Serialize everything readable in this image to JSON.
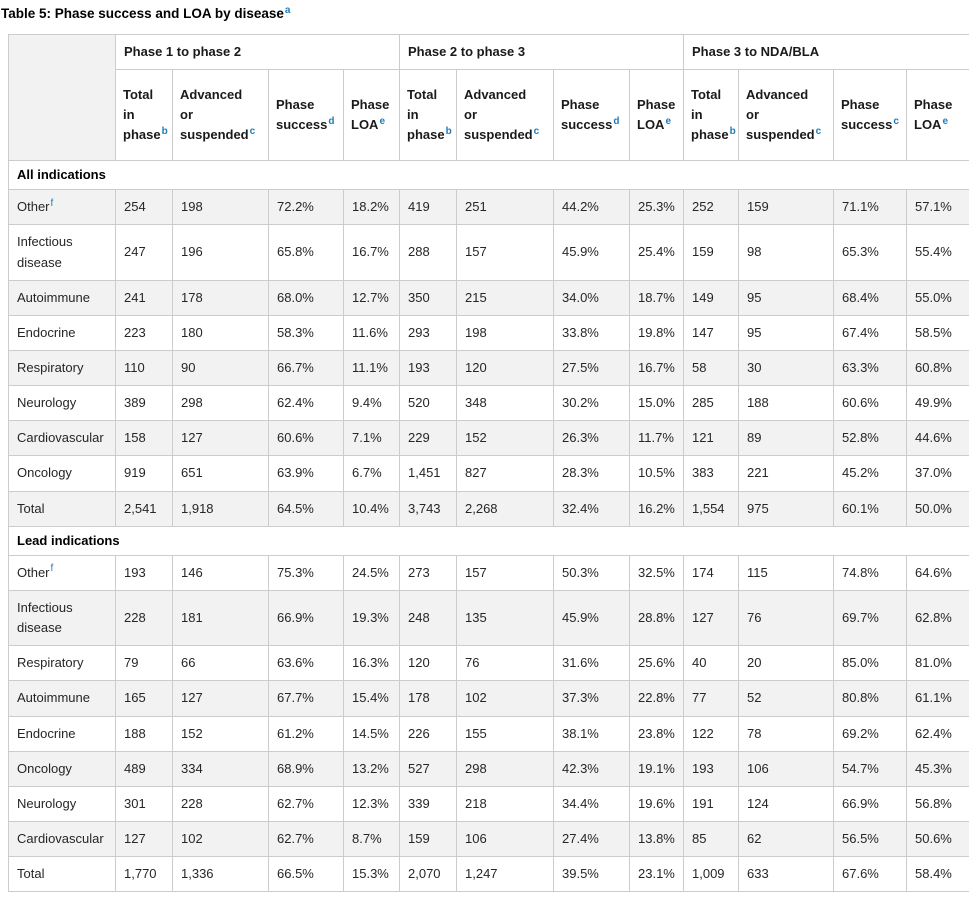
{
  "page": {
    "title": "Table 5: Phase success and LOA by disease",
    "title_footnote": "a"
  },
  "colors": {
    "footnote_link": "#1e7db8",
    "row_stripe": "#f2f2f2",
    "border": "#cccccc",
    "text": "#262626"
  },
  "table": {
    "column_groups": [
      {
        "label": "Phase 1 to phase 2"
      },
      {
        "label": "Phase 2 to phase 3"
      },
      {
        "label": "Phase 3 to NDA/BLA"
      }
    ],
    "columns": [
      {
        "lines": [
          "Total",
          "in",
          "phase"
        ],
        "footnote": "b"
      },
      {
        "lines": [
          "Advanced",
          "or",
          "suspended"
        ],
        "footnote": "c"
      },
      {
        "lines": [
          "Phase",
          "success"
        ],
        "footnote": "d"
      },
      {
        "lines": [
          "Phase",
          "LOA"
        ],
        "footnote": "e"
      },
      {
        "lines": [
          "Total",
          "in",
          "phase"
        ],
        "footnote": "b"
      },
      {
        "lines": [
          "Advanced",
          "or",
          "suspended"
        ],
        "footnote": "c"
      },
      {
        "lines": [
          "Phase",
          "success"
        ],
        "footnote": "d"
      },
      {
        "lines": [
          "Phase",
          "LOA"
        ],
        "footnote": "e"
      },
      {
        "lines": [
          "Total",
          "in",
          "phase"
        ],
        "footnote": "b"
      },
      {
        "lines": [
          "Advanced",
          "or",
          "suspended"
        ],
        "footnote": "c"
      },
      {
        "lines": [
          "Phase",
          "success"
        ],
        "footnote": "c"
      },
      {
        "lines": [
          "Phase",
          "LOA"
        ],
        "footnote": "e"
      }
    ],
    "sections": [
      {
        "label": "All indications",
        "rows": [
          {
            "disease": "Other",
            "footnote": "f",
            "values": [
              "254",
              "198",
              "72.2%",
              "18.2%",
              "419",
              "251",
              "44.2%",
              "25.3%",
              "252",
              "159",
              "71.1%",
              "57.1%"
            ]
          },
          {
            "disease": "Infectious disease",
            "values": [
              "247",
              "196",
              "65.8%",
              "16.7%",
              "288",
              "157",
              "45.9%",
              "25.4%",
              "159",
              "98",
              "65.3%",
              "55.4%"
            ]
          },
          {
            "disease": "Autoimmune",
            "values": [
              "241",
              "178",
              "68.0%",
              "12.7%",
              "350",
              "215",
              "34.0%",
              "18.7%",
              "149",
              "95",
              "68.4%",
              "55.0%"
            ]
          },
          {
            "disease": "Endocrine",
            "values": [
              "223",
              "180",
              "58.3%",
              "11.6%",
              "293",
              "198",
              "33.8%",
              "19.8%",
              "147",
              "95",
              "67.4%",
              "58.5%"
            ]
          },
          {
            "disease": "Respiratory",
            "values": [
              "110",
              "90",
              "66.7%",
              "11.1%",
              "193",
              "120",
              "27.5%",
              "16.7%",
              "58",
              "30",
              "63.3%",
              "60.8%"
            ]
          },
          {
            "disease": "Neurology",
            "values": [
              "389",
              "298",
              "62.4%",
              "9.4%",
              "520",
              "348",
              "30.2%",
              "15.0%",
              "285",
              "188",
              "60.6%",
              "49.9%"
            ]
          },
          {
            "disease": "Cardiovascular",
            "values": [
              "158",
              "127",
              "60.6%",
              "7.1%",
              "229",
              "152",
              "26.3%",
              "11.7%",
              "121",
              "89",
              "52.8%",
              "44.6%"
            ]
          },
          {
            "disease": "Oncology",
            "values": [
              "919",
              "651",
              "63.9%",
              "6.7%",
              "1,451",
              "827",
              "28.3%",
              "10.5%",
              "383",
              "221",
              "45.2%",
              "37.0%"
            ]
          },
          {
            "disease": "Total",
            "values": [
              "2,541",
              "1,918",
              "64.5%",
              "10.4%",
              "3,743",
              "2,268",
              "32.4%",
              "16.2%",
              "1,554",
              "975",
              "60.1%",
              "50.0%"
            ]
          }
        ]
      },
      {
        "label": "Lead indications",
        "rows": [
          {
            "disease": "Other",
            "footnote": "f",
            "values": [
              "193",
              "146",
              "75.3%",
              "24.5%",
              "273",
              "157",
              "50.3%",
              "32.5%",
              "174",
              "115",
              "74.8%",
              "64.6%"
            ]
          },
          {
            "disease": "Infectious disease",
            "values": [
              "228",
              "181",
              "66.9%",
              "19.3%",
              "248",
              "135",
              "45.9%",
              "28.8%",
              "127",
              "76",
              "69.7%",
              "62.8%"
            ]
          },
          {
            "disease": "Respiratory",
            "values": [
              "79",
              "66",
              "63.6%",
              "16.3%",
              "120",
              "76",
              "31.6%",
              "25.6%",
              "40",
              "20",
              "85.0%",
              "81.0%"
            ]
          },
          {
            "disease": "Autoimmune",
            "values": [
              "165",
              "127",
              "67.7%",
              "15.4%",
              "178",
              "102",
              "37.3%",
              "22.8%",
              "77",
              "52",
              "80.8%",
              "61.1%"
            ]
          },
          {
            "disease": "Endocrine",
            "values": [
              "188",
              "152",
              "61.2%",
              "14.5%",
              "226",
              "155",
              "38.1%",
              "23.8%",
              "122",
              "78",
              "69.2%",
              "62.4%"
            ]
          },
          {
            "disease": "Oncology",
            "values": [
              "489",
              "334",
              "68.9%",
              "13.2%",
              "527",
              "298",
              "42.3%",
              "19.1%",
              "193",
              "106",
              "54.7%",
              "45.3%"
            ]
          },
          {
            "disease": "Neurology",
            "values": [
              "301",
              "228",
              "62.7%",
              "12.3%",
              "339",
              "218",
              "34.4%",
              "19.6%",
              "191",
              "124",
              "66.9%",
              "56.8%"
            ]
          },
          {
            "disease": "Cardiovascular",
            "values": [
              "127",
              "102",
              "62.7%",
              "8.7%",
              "159",
              "106",
              "27.4%",
              "13.8%",
              "85",
              "62",
              "56.5%",
              "50.6%"
            ]
          },
          {
            "disease": "Total",
            "values": [
              "1,770",
              "1,336",
              "66.5%",
              "15.3%",
              "2,070",
              "1,247",
              "39.5%",
              "23.1%",
              "1,009",
              "633",
              "67.6%",
              "58.4%"
            ]
          }
        ]
      }
    ]
  }
}
